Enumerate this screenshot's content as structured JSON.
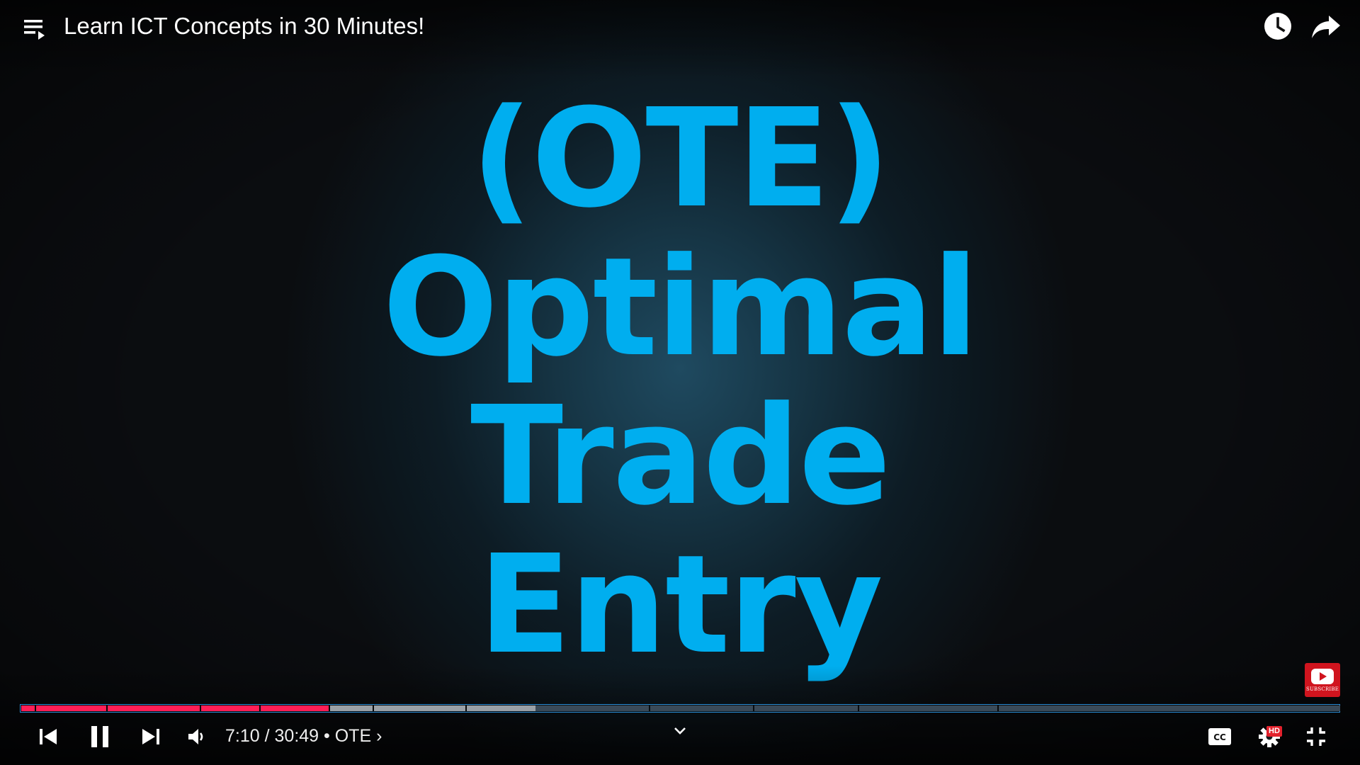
{
  "header": {
    "title": "Learn ICT Concepts in 30 Minutes!",
    "icons": [
      "playlist-icon",
      "watch-later-icon",
      "share-icon"
    ]
  },
  "slide": {
    "lines": [
      "(OTE)",
      "Optimal",
      "Trade",
      "Entry"
    ],
    "text_color": "#00aeef"
  },
  "watermark": {
    "text": "SUBSCRIBE",
    "color": "#d0141e"
  },
  "progress": {
    "played_color": "#ff1e56",
    "buffered_color": "#9aa0a6",
    "unbuffered_color": "#3a4a58"
  },
  "controls": {
    "current_time": "7:10",
    "separator": " / ",
    "duration": "30:49",
    "bullet": " • ",
    "chapter": "OTE",
    "chapter_chevron": "›",
    "hd_badge": "HD",
    "icons": [
      "previous-icon",
      "pause-icon",
      "next-icon",
      "volume-icon",
      "chapters-expand-icon",
      "captions-icon",
      "settings-icon",
      "exit-fullscreen-icon"
    ]
  }
}
